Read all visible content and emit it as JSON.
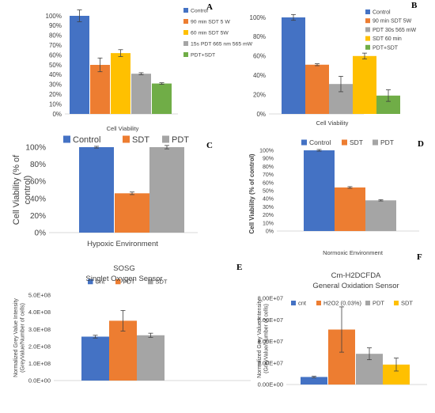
{
  "chart_data": [
    {
      "id": "A",
      "panel_label": "A",
      "type": "bar",
      "title": "",
      "xlabel": "Cell Viability",
      "ylabel": "",
      "ylim": [
        0,
        100
      ],
      "y_unit": "%",
      "y_ticks": [
        0,
        10,
        20,
        30,
        40,
        50,
        60,
        70,
        80,
        90,
        100
      ],
      "legend_position": "right",
      "series": [
        {
          "name": "Control",
          "value": 100,
          "error": 6,
          "color": "#4472C4"
        },
        {
          "name": "90 min SDT 5 W",
          "value": 50,
          "error": 7,
          "color": "#ED7D31"
        },
        {
          "name": "60 min SDT 5W",
          "value": 62,
          "error": 3.5,
          "color": "#FFC000"
        },
        {
          "name": "15s PDT 665 nm 565 mW",
          "value": 41,
          "error": 1,
          "color": "#A5A5A5"
        },
        {
          "name": "PDT+SDT",
          "value": 31,
          "error": 0.8,
          "color": "#70AD47"
        }
      ]
    },
    {
      "id": "B",
      "panel_label": "B",
      "type": "bar",
      "title": "",
      "xlabel": "Cell Viability",
      "ylabel": "",
      "ylim": [
        0,
        100
      ],
      "y_unit": "%",
      "y_ticks": [
        0,
        20,
        40,
        60,
        80,
        100
      ],
      "legend_position": "right",
      "series": [
        {
          "name": "Control",
          "value": 100,
          "error": 3,
          "color": "#4472C4"
        },
        {
          "name": "90 min SDT 5W",
          "value": 51,
          "error": 1,
          "color": "#ED7D31"
        },
        {
          "name": "PDT 30s 565 mW",
          "value": 31,
          "error": 8,
          "color": "#A5A5A5"
        },
        {
          "name": "SDT 60 min",
          "value": 60,
          "error": 3,
          "color": "#FFC000"
        },
        {
          "name": "PDT+SDT",
          "value": 19,
          "error": 6,
          "color": "#70AD47"
        }
      ]
    },
    {
      "id": "C",
      "panel_label": "C",
      "type": "bar",
      "title": "",
      "xlabel": "Hypoxic Environment",
      "ylabel": "Cell Viability (% of control)",
      "ylim": [
        0,
        100
      ],
      "y_unit": "%",
      "y_ticks": [
        0,
        20,
        40,
        60,
        80,
        100
      ],
      "legend_position": "top",
      "series": [
        {
          "name": "Control",
          "value": 100,
          "error": 1,
          "color": "#4472C4"
        },
        {
          "name": "SDT",
          "value": 46,
          "error": 1.5,
          "color": "#ED7D31"
        },
        {
          "name": "PDT",
          "value": 100,
          "error": 2,
          "color": "#A5A5A5"
        }
      ]
    },
    {
      "id": "D",
      "panel_label": "D",
      "type": "bar",
      "title": "",
      "xlabel": "Normoxic Environment",
      "ylabel": "Cell Viability (% of control)",
      "ylim": [
        0,
        100
      ],
      "y_unit": "%",
      "y_ticks": [
        0,
        10,
        20,
        30,
        40,
        50,
        60,
        70,
        80,
        90,
        100
      ],
      "legend_position": "top",
      "series": [
        {
          "name": "Control",
          "value": 100,
          "error": 1,
          "color": "#4472C4"
        },
        {
          "name": "SDT",
          "value": 54,
          "error": 1,
          "color": "#ED7D31"
        },
        {
          "name": "PDT",
          "value": 38,
          "error": 0.8,
          "color": "#A5A5A5"
        }
      ]
    },
    {
      "id": "E",
      "panel_label": "E",
      "type": "bar",
      "title": "SOSG",
      "subtitle": "Singlet Oxygen Sensor",
      "xlabel": "",
      "ylabel": "Normalized Grey Value Intensity (GreyValue/Number of cells)",
      "ylim": [
        0,
        500000000
      ],
      "y_ticks": [
        0,
        100000000,
        200000000,
        300000000,
        400000000,
        500000000
      ],
      "y_tick_labels": [
        "0.0E+00",
        "1.0E+08",
        "2.0E+08",
        "3.0E+08",
        "4.0E+08",
        "5.0E+08"
      ],
      "legend_position": "top",
      "series": [
        {
          "name": "Cnt",
          "value": 257000000,
          "error": 8000000,
          "color": "#4472C4"
        },
        {
          "name": "PDT",
          "value": 350000000,
          "error": 60000000,
          "color": "#ED7D31"
        },
        {
          "name": "SDT",
          "value": 265000000,
          "error": 12000000,
          "color": "#A5A5A5"
        }
      ]
    },
    {
      "id": "F",
      "panel_label": "F",
      "type": "bar",
      "title": "Cm-H2DCFDA",
      "subtitle": "General Oxidation Sensor",
      "xlabel": "",
      "ylabel": "Normalized Grey Value Intensity (GreyValue/Number of cells)",
      "ylim": [
        0,
        80000000
      ],
      "y_ticks": [
        0,
        20000000,
        40000000,
        60000000,
        80000000
      ],
      "y_tick_labels": [
        "0.00E+00",
        "2.00E+07",
        "4.00E+07",
        "6.00E+07",
        "8.00E+07"
      ],
      "legend_position": "top",
      "series": [
        {
          "name": "cnt",
          "value": 7000000,
          "error": 700000,
          "color": "#4472C4"
        },
        {
          "name": "H2O2 (0.03%)",
          "value": 51000000,
          "error": 21000000,
          "color": "#ED7D31"
        },
        {
          "name": "PDT",
          "value": 28500000,
          "error": 5500000,
          "color": "#A5A5A5"
        },
        {
          "name": "SDT",
          "value": 18500000,
          "error": 6000000,
          "color": "#FFC000"
        }
      ]
    }
  ]
}
